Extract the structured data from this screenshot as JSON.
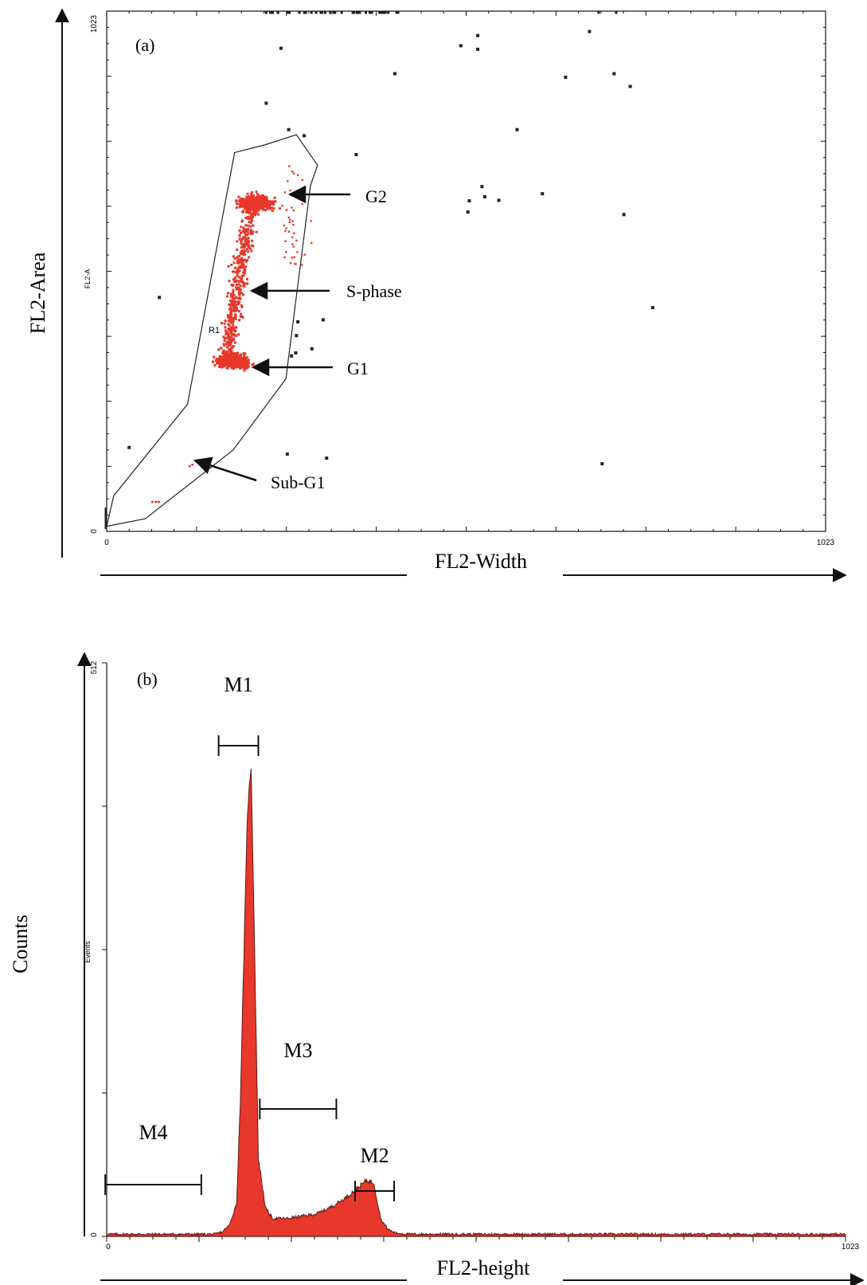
{
  "chart_data": [
    {
      "type": "scatter",
      "panel_label": "(a)",
      "xlabel": "FL2-Width",
      "ylabel": "FL2-Area",
      "inner_ylabel": "FL2-A",
      "xlim": [
        0,
        1023
      ],
      "ylim": [
        0,
        1023
      ],
      "x_tick_labels": [
        "0",
        "1023"
      ],
      "y_tick_labels": [
        "0",
        "1023"
      ],
      "gate": {
        "label": "R1",
        "polygon": [
          [
            0,
            10
          ],
          [
            55,
            25
          ],
          [
            180,
            160
          ],
          [
            255,
            300
          ],
          [
            290,
            680
          ],
          [
            300,
            720
          ],
          [
            270,
            780
          ],
          [
            225,
            760
          ],
          [
            182,
            745
          ],
          [
            115,
            250
          ],
          [
            10,
            70
          ]
        ]
      },
      "gated_color": "#e8372b",
      "ungated_color": "#222222",
      "populations": [
        {
          "name": "G2",
          "center": [
            215,
            640
          ]
        },
        {
          "name": "S-phase",
          "center": [
            200,
            470
          ]
        },
        {
          "name": "G1",
          "center": [
            180,
            335
          ]
        },
        {
          "name": "Sub-G1",
          "center": [
            120,
            130
          ]
        }
      ],
      "annotations": [
        {
          "text": "G2",
          "x": 265,
          "y": 657
        },
        {
          "text": "S-phase",
          "x": 208,
          "y": 475
        },
        {
          "text": "G1",
          "x": 210,
          "y": 323
        },
        {
          "text": "Sub-G1",
          "x": 125,
          "y": 132
        }
      ],
      "outlier_points": [
        [
          248,
          950
        ],
        [
          504,
          955
        ],
        [
          528,
          948
        ],
        [
          528,
          975
        ],
        [
          687,
          983
        ],
        [
          410,
          900
        ],
        [
          227,
          842
        ],
        [
          653,
          893
        ],
        [
          722,
          900
        ],
        [
          745,
          875
        ],
        [
          259,
          790
        ],
        [
          281,
          778
        ],
        [
          355,
          741
        ],
        [
          584,
          790
        ],
        [
          620,
          664
        ],
        [
          516,
          650
        ],
        [
          534,
          678
        ],
        [
          538,
          658
        ],
        [
          558,
          651
        ],
        [
          514,
          628
        ],
        [
          736,
          623
        ],
        [
          777,
          440
        ],
        [
          75,
          460
        ],
        [
          32,
          165
        ],
        [
          257,
          152
        ],
        [
          313,
          144
        ],
        [
          705,
          133
        ],
        [
          272,
          412
        ],
        [
          270,
          385
        ],
        [
          308,
          416
        ],
        [
          269,
          351
        ],
        [
          292,
          359
        ],
        [
          263,
          345
        ]
      ]
    },
    {
      "type": "histogram",
      "panel_label": "(b)",
      "xlabel": "FL2-height",
      "ylabel": "Counts",
      "inner_ylabel": "Events",
      "xlim": [
        0,
        1023
      ],
      "ylim": [
        0,
        512
      ],
      "x_tick_labels": [
        "0",
        "1023"
      ],
      "y_tick_labels": [
        "0",
        "512"
      ],
      "fill_color": "#e8372b",
      "x": [
        0,
        150,
        160,
        170,
        180,
        185,
        190,
        195,
        200,
        205,
        210,
        220,
        230,
        250,
        270,
        290,
        310,
        330,
        345,
        360,
        370,
        375,
        380,
        390,
        400,
        420,
        1023
      ],
      "counts": [
        2,
        2,
        4,
        10,
        30,
        120,
        250,
        380,
        420,
        250,
        70,
        25,
        16,
        16,
        18,
        20,
        26,
        34,
        42,
        50,
        48,
        30,
        15,
        6,
        3,
        2,
        2
      ],
      "markers": [
        {
          "name": "M1",
          "x_range": [
            155,
            210
          ]
        },
        {
          "name": "M2",
          "x_range": [
            344,
            398
          ]
        },
        {
          "name": "M3",
          "x_range": [
            212,
            318
          ]
        },
        {
          "name": "M4",
          "x_range": [
            -2,
            131
          ]
        }
      ]
    }
  ]
}
